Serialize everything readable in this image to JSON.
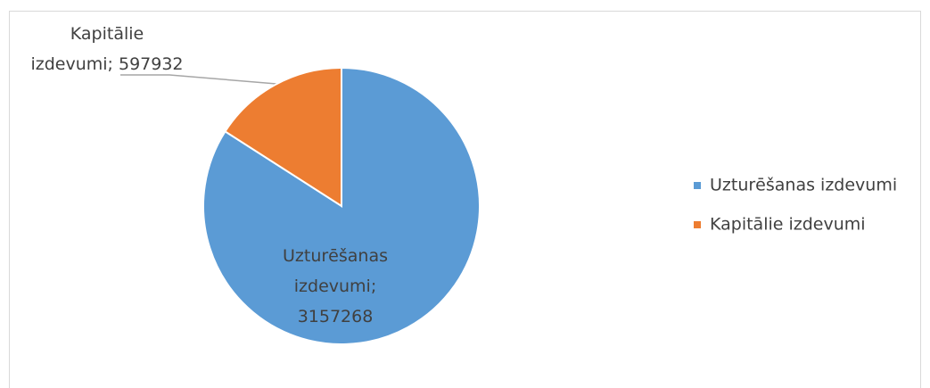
{
  "chart_data": {
    "type": "pie",
    "categories": [
      "Uzturēšanas izdevumi",
      "Kapitālie izdevumi"
    ],
    "values": [
      3157268,
      597932
    ],
    "value_labels": [
      "Uzturēšanas izdevumi; 3157268",
      "Kapitālie izdevumi; 597932"
    ],
    "colors": [
      "#5b9bd5",
      "#ed7d31"
    ],
    "legend": "right"
  }
}
